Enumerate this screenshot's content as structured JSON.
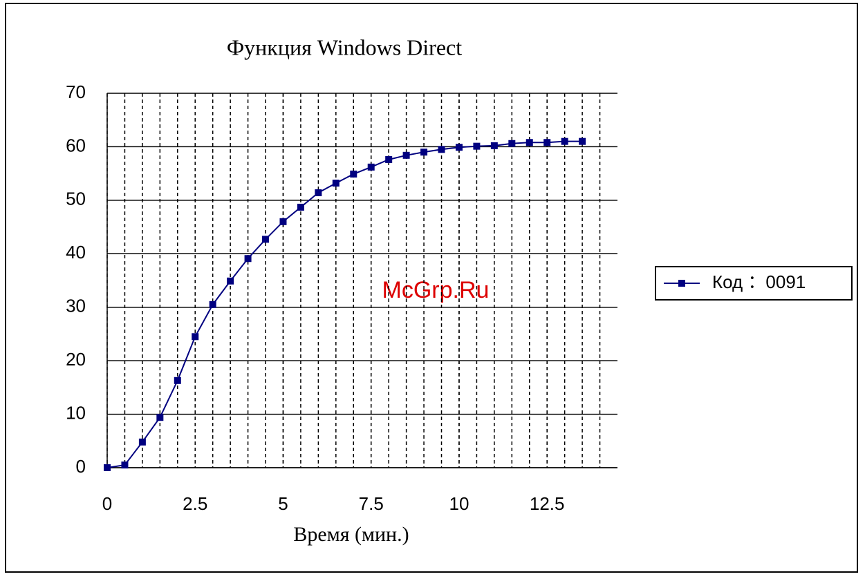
{
  "chart_data": {
    "type": "line",
    "title": "Функция Windows Direct",
    "x_label": "Время (мин.)",
    "watermark": "McGrp.Ru",
    "x": [
      0,
      0.5,
      1,
      1.5,
      2,
      2.5,
      3,
      3.5,
      4,
      4.5,
      5,
      5.5,
      6,
      6.5,
      7,
      7.5,
      8,
      8.5,
      9,
      9.5,
      10,
      10.5,
      11,
      11.5,
      12,
      12.5,
      13,
      13.5
    ],
    "series": [
      {
        "name": "Код ：0091",
        "color": "#000080",
        "values": [
          0,
          0.5,
          4.8,
          9.4,
          16.3,
          24.5,
          30.5,
          34.9,
          39.1,
          42.7,
          46,
          48.7,
          51.4,
          53.2,
          54.9,
          56.2,
          57.6,
          58.4,
          59,
          59.5,
          59.9,
          60.1,
          60.2,
          60.6,
          60.8,
          60.8,
          61,
          61
        ]
      }
    ],
    "xlim": [
      0,
      14.5
    ],
    "xticks": [
      0,
      2.5,
      5,
      7.5,
      10,
      12.5
    ],
    "ylim": [
      0,
      70
    ],
    "yticks": [
      0,
      10,
      20,
      30,
      40,
      50,
      60,
      70
    ],
    "grid": true,
    "legend": "right"
  }
}
